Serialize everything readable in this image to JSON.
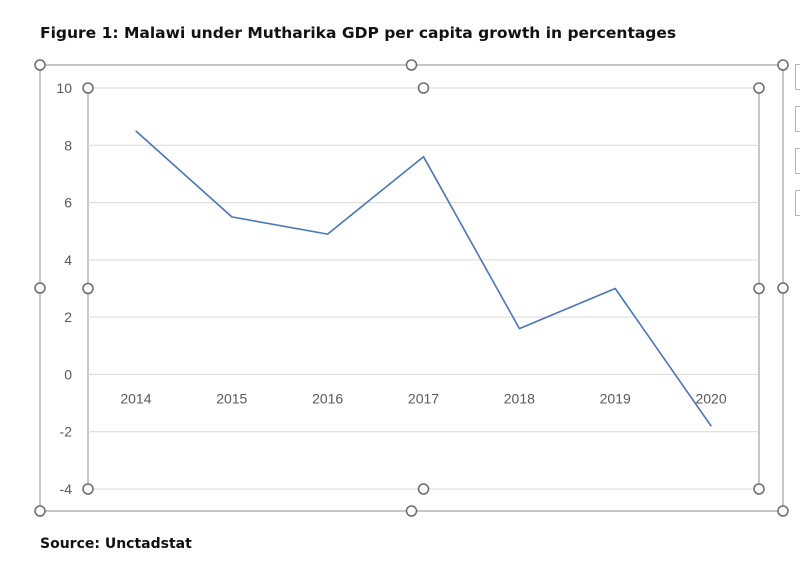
{
  "figure": {
    "title": "Figure 1: Malawi under Mutharika GDP per capita growth in percentages",
    "source": "Source: Unctadstat"
  },
  "chart_data": {
    "type": "line",
    "title": "",
    "xlabel": "",
    "ylabel": "",
    "categories": [
      "2014",
      "2015",
      "2016",
      "2017",
      "2018",
      "2019",
      "2020"
    ],
    "series": [
      {
        "values": [
          8.5,
          5.5,
          4.9,
          7.6,
          1.6,
          3.0,
          -1.8
        ],
        "color": "#4a76b8"
      }
    ],
    "ylim": [
      -4,
      10
    ],
    "yticks": [
      10,
      8,
      6,
      4,
      2,
      0,
      -2,
      -4
    ],
    "grid": true,
    "legend": "none"
  },
  "colors": {
    "line": "#4a76b8",
    "grid": "#d9d9d9",
    "tick_label": "#595959",
    "selection_frame": "#8c8c8c"
  },
  "selection_handles": {
    "shape": "circle",
    "state": "chart-selected"
  }
}
